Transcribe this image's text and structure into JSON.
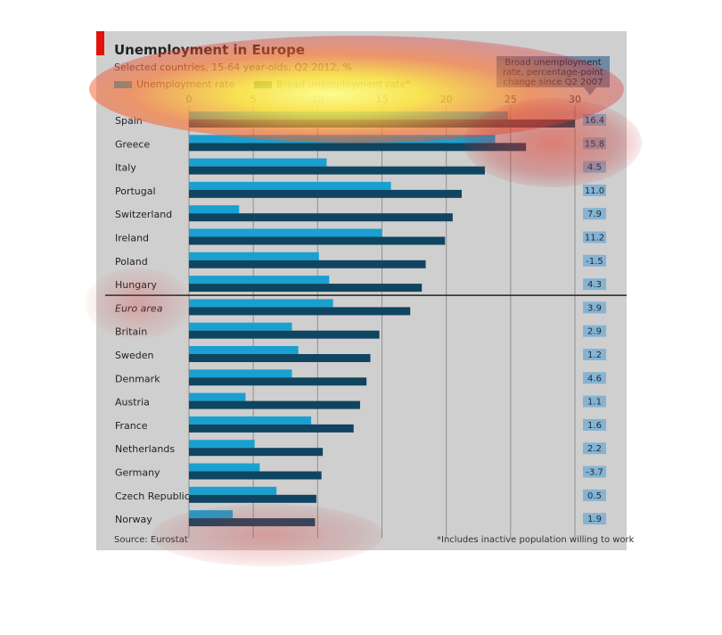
{
  "title": "Unemployment in Europe",
  "subtitle": "Selected countries, 15-64 year-olds, Q2 2012, %",
  "legend": {
    "unemployment": "Unemployment rate",
    "broad": "Broad unemployment rate*"
  },
  "callout": "Broad unemployment rate, percentage-point change since Q2 2007",
  "source": "Source: Eurostat",
  "footnote": "*Includes inactive population willing to work",
  "colors": {
    "unemployment": "#1aa0d0",
    "broad": "#0f4560",
    "change_box": "#86b3d2",
    "panel": "#cfcfcf"
  },
  "chart_data": {
    "type": "bar",
    "orientation": "horizontal",
    "xlim": [
      0,
      30
    ],
    "xticks": [
      "0",
      "5",
      "10",
      "15",
      "20",
      "25",
      "30"
    ],
    "categories": [
      "Spain",
      "Greece",
      "Italy",
      "Portugal",
      "Switzerland",
      "Ireland",
      "Poland",
      "Hungary",
      "Euro area",
      "Britain",
      "Sweden",
      "Denmark",
      "Austria",
      "France",
      "Netherlands",
      "Germany",
      "Czech Republic",
      "Norway"
    ],
    "series": [
      {
        "name": "Unemployment rate",
        "values": [
          24.8,
          23.8,
          10.7,
          15.7,
          3.9,
          15.0,
          10.1,
          10.9,
          11.2,
          8.0,
          8.5,
          8.0,
          4.4,
          9.5,
          5.1,
          5.5,
          6.8,
          3.4
        ]
      },
      {
        "name": "Broad unemployment rate*",
        "values": [
          30.0,
          26.2,
          23.0,
          21.2,
          20.5,
          19.9,
          18.4,
          18.1,
          17.2,
          14.8,
          14.1,
          13.8,
          13.3,
          12.8,
          10.4,
          10.3,
          9.9,
          9.8
        ]
      }
    ],
    "change": [
      "16.4",
      "15.8",
      "4.5",
      "11.0",
      "7.9",
      "11.2",
      "-1.5",
      "4.3",
      "3.9",
      "2.9",
      "1.2",
      "4.6",
      "1.1",
      "1.6",
      "2.2",
      "-3.7",
      "0.5",
      "1.9"
    ],
    "italic_categories": [
      "Euro area"
    ],
    "separator_after": "Hungary",
    "grid": true
  }
}
